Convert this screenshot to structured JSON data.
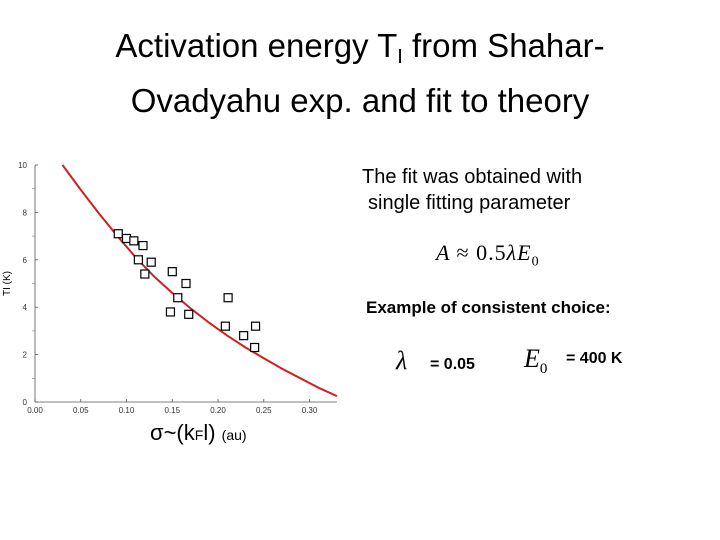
{
  "title": {
    "part1": "Activation energy T",
    "subscript": "I",
    "part2": " from Shahar-",
    "line2": "Ovadyahu  exp. and fit to theory"
  },
  "note": {
    "line1": "The fit was obtained with",
    "line2": "single fitting parameter"
  },
  "formula": {
    "lhs": "A",
    "approx": "≈",
    "coef": "0.5",
    "lambda": "λ",
    "E": "E",
    "sub": "0"
  },
  "example": {
    "heading": "Example of consistent choice:",
    "lambda_symbol": "λ",
    "lambda_value": "= 0.05",
    "e0_symbol": "E",
    "e0_sub": "0",
    "e0_value": "= 400 K"
  },
  "chart_data": {
    "type": "scatter",
    "xlabel_main": "σ~(k",
    "xlabel_sub": "F",
    "xlabel_end": "l)",
    "xlabel_unit": "(au)",
    "ylabel": "T",
    "ylabel_sub": "I",
    "ylabel_unit": "(K)",
    "xlim": [
      0,
      0.33
    ],
    "ylim": [
      0,
      10
    ],
    "x_ticks": [
      "0.00",
      "0.05",
      "0.10",
      "0.15",
      "0.20",
      "0.25",
      "0.30"
    ],
    "x_tick_values": [
      0,
      0.05,
      0.1,
      0.15,
      0.2,
      0.25,
      0.3
    ],
    "y_ticks": [
      "0",
      "2",
      "4",
      "6",
      "8",
      "10"
    ],
    "y_tick_values": [
      0,
      2,
      4,
      6,
      8,
      10
    ],
    "points": [
      {
        "x": 0.091,
        "y": 7.1
      },
      {
        "x": 0.1,
        "y": 6.9
      },
      {
        "x": 0.108,
        "y": 6.8
      },
      {
        "x": 0.118,
        "y": 6.6
      },
      {
        "x": 0.113,
        "y": 6.0
      },
      {
        "x": 0.127,
        "y": 5.9
      },
      {
        "x": 0.12,
        "y": 5.4
      },
      {
        "x": 0.15,
        "y": 5.5
      },
      {
        "x": 0.165,
        "y": 5.0
      },
      {
        "x": 0.156,
        "y": 4.4
      },
      {
        "x": 0.148,
        "y": 3.8
      },
      {
        "x": 0.168,
        "y": 3.7
      },
      {
        "x": 0.211,
        "y": 4.4
      },
      {
        "x": 0.208,
        "y": 3.2
      },
      {
        "x": 0.228,
        "y": 2.8
      },
      {
        "x": 0.241,
        "y": 3.2
      },
      {
        "x": 0.24,
        "y": 2.3
      }
    ],
    "fit_curve": {
      "color": "#cc2222",
      "x": [
        0.03,
        0.05,
        0.07,
        0.09,
        0.11,
        0.13,
        0.15,
        0.17,
        0.19,
        0.21,
        0.23,
        0.25,
        0.27,
        0.29,
        0.31,
        0.33
      ],
      "y": [
        10.0,
        8.95,
        7.95,
        7.0,
        6.1,
        5.3,
        4.6,
        3.95,
        3.35,
        2.8,
        2.3,
        1.85,
        1.4,
        1.0,
        0.6,
        0.25
      ]
    }
  }
}
